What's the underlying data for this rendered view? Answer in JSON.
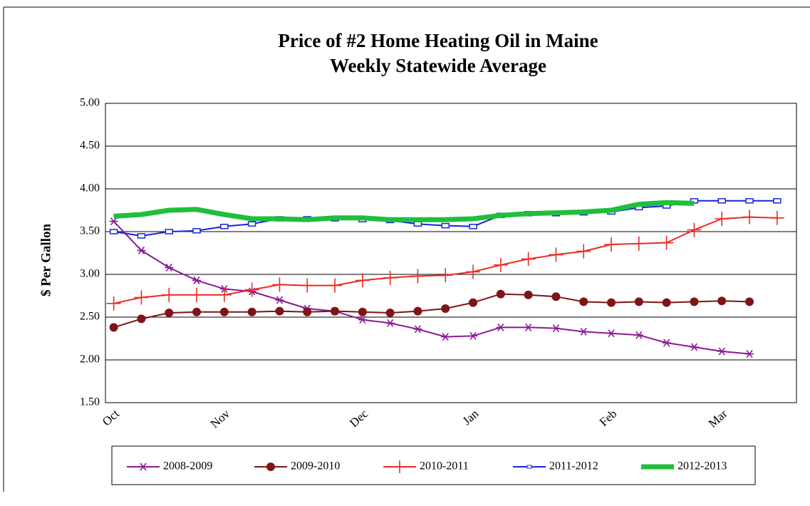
{
  "chart_data": {
    "type": "line",
    "title": "Price of #2 Home Heating Oil in Maine",
    "subtitle": "Weekly Statewide Average",
    "y_label": "$ Per Gallon",
    "categories": [
      "Oct",
      null,
      null,
      null,
      "Nov",
      null,
      null,
      null,
      null,
      "Dec",
      null,
      null,
      null,
      "Jan",
      null,
      null,
      null,
      null,
      "Feb",
      null,
      null,
      null,
      "Mar",
      null,
      null
    ],
    "ylim": [
      1.5,
      5
    ],
    "yticks": [
      {
        "value": 1.5,
        "label": "1.50"
      },
      {
        "value": 2,
        "label": "2.00"
      },
      {
        "value": 2.5,
        "label": "2.50"
      },
      {
        "value": 3,
        "label": "3.00"
      },
      {
        "value": 3.5,
        "label": "3.50"
      },
      {
        "value": 4,
        "label": "4.00"
      },
      {
        "value": 4.5,
        "label": "4.50"
      },
      {
        "value": 5,
        "label": "5.00"
      }
    ],
    "grid": true,
    "legend": "bottom",
    "series": [
      {
        "name": "2008-2009",
        "color": "#8b1a96",
        "marker": "asterisk",
        "line_width": 2,
        "values": [
          3.62,
          3.28,
          3.08,
          2.93,
          2.83,
          2.8,
          2.7,
          2.6,
          2.57,
          2.47,
          2.43,
          2.36,
          2.27,
          2.28,
          2.38,
          2.38,
          2.37,
          2.33,
          2.31,
          2.29,
          2.2,
          2.15,
          2.1,
          2.07,
          null
        ]
      },
      {
        "name": "2009-2010",
        "color": "#7f1416",
        "marker": "circle",
        "line_width": 2,
        "values": [
          2.38,
          2.48,
          2.55,
          2.56,
          2.56,
          2.56,
          2.57,
          2.56,
          2.57,
          2.56,
          2.55,
          2.57,
          2.6,
          2.67,
          2.77,
          2.76,
          2.74,
          2.68,
          2.67,
          2.68,
          2.67,
          2.68,
          2.69,
          2.68,
          null
        ]
      },
      {
        "name": "2010-2011",
        "color": "#ee2a24",
        "marker": "plus",
        "line_width": 2,
        "values": [
          2.66,
          2.73,
          2.76,
          2.76,
          2.76,
          2.82,
          2.88,
          2.87,
          2.87,
          2.93,
          2.96,
          2.98,
          2.99,
          3.03,
          3.11,
          3.18,
          3.23,
          3.27,
          3.35,
          3.36,
          3.37,
          3.52,
          3.65,
          3.67,
          3.66
        ]
      },
      {
        "name": "2011-2012",
        "color": "#1426d8",
        "marker": "square",
        "line_width": 2,
        "values": [
          3.5,
          3.45,
          3.5,
          3.51,
          3.56,
          3.59,
          3.65,
          3.65,
          3.65,
          3.64,
          3.63,
          3.59,
          3.57,
          3.56,
          3.69,
          3.71,
          3.71,
          3.72,
          3.73,
          3.78,
          3.8,
          3.86,
          3.86,
          3.86,
          3.86
        ]
      },
      {
        "name": "2012-2013",
        "color": "#1fbf3c",
        "marker": "none",
        "line_width": 7,
        "values": [
          3.68,
          3.7,
          3.75,
          3.76,
          3.7,
          3.65,
          3.65,
          3.64,
          3.66,
          3.66,
          3.64,
          3.64,
          3.64,
          3.65,
          3.69,
          3.71,
          3.72,
          3.73,
          3.75,
          3.82,
          3.84,
          3.83,
          null,
          null,
          null
        ]
      }
    ]
  }
}
